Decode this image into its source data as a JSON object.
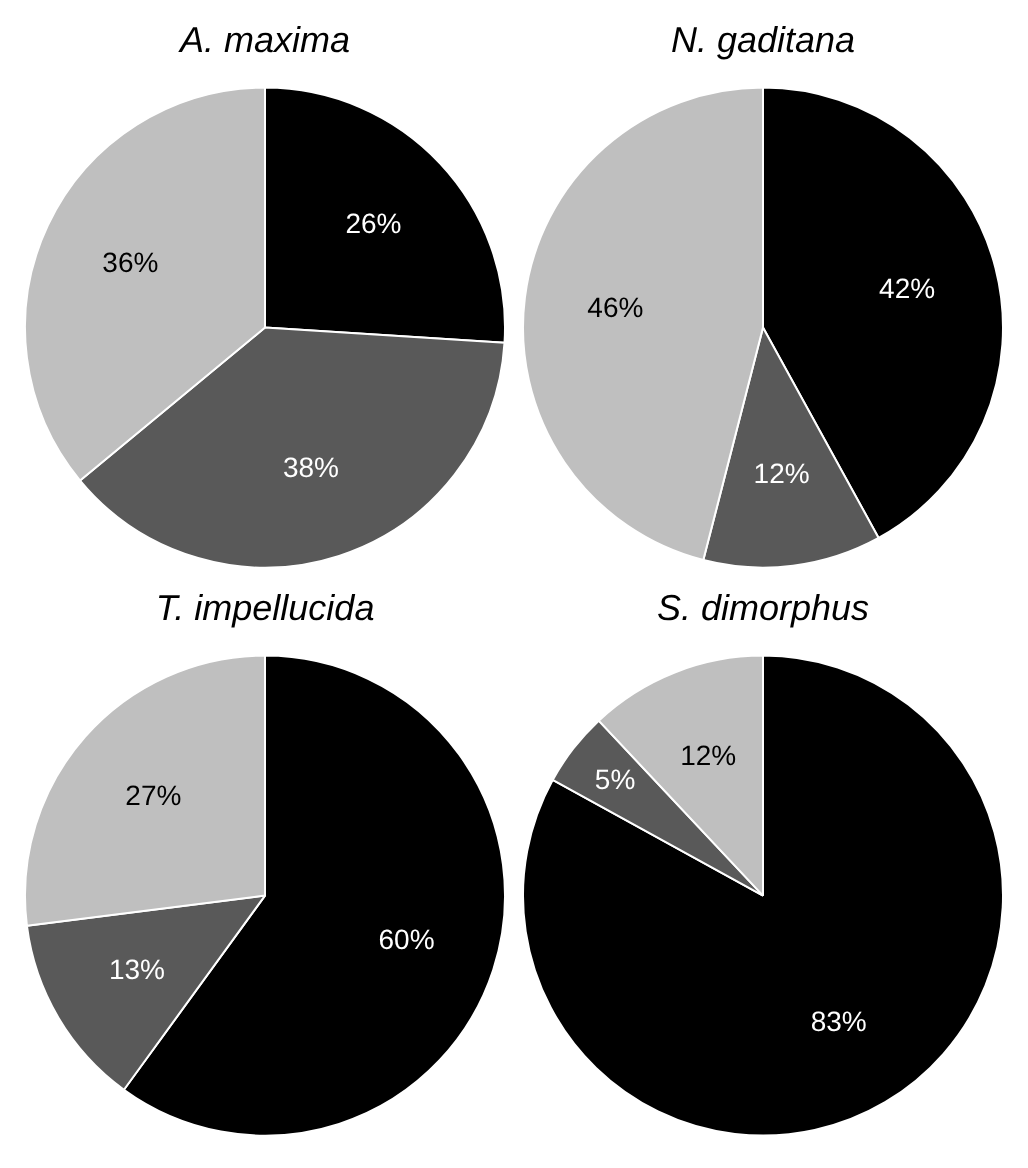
{
  "chart_data": [
    {
      "type": "pie",
      "title": "A. maxima",
      "categories": [
        null,
        null,
        null
      ],
      "values": [
        26,
        38,
        36
      ],
      "colors": [
        "#000000",
        "#595959",
        "#bfbfbf"
      ],
      "value_labels": [
        "26%",
        "38%",
        "36%"
      ]
    },
    {
      "type": "pie",
      "title": "N. gaditana",
      "categories": [
        null,
        null,
        null
      ],
      "values": [
        42,
        12,
        46
      ],
      "colors": [
        "#000000",
        "#595959",
        "#bfbfbf"
      ],
      "value_labels": [
        "42%",
        "12%",
        "46%"
      ]
    },
    {
      "type": "pie",
      "title": "T. impellucida",
      "categories": [
        null,
        null,
        null
      ],
      "values": [
        60,
        13,
        27
      ],
      "colors": [
        "#000000",
        "#595959",
        "#bfbfbf"
      ],
      "value_labels": [
        "60%",
        "13%",
        "27%"
      ]
    },
    {
      "type": "pie",
      "title": "S. dimorphus",
      "categories": [
        null,
        null,
        null
      ],
      "values": [
        83,
        5,
        12
      ],
      "colors": [
        "#000000",
        "#595959",
        "#bfbfbf"
      ],
      "value_labels": [
        "83%",
        "5%",
        "12%"
      ]
    }
  ]
}
